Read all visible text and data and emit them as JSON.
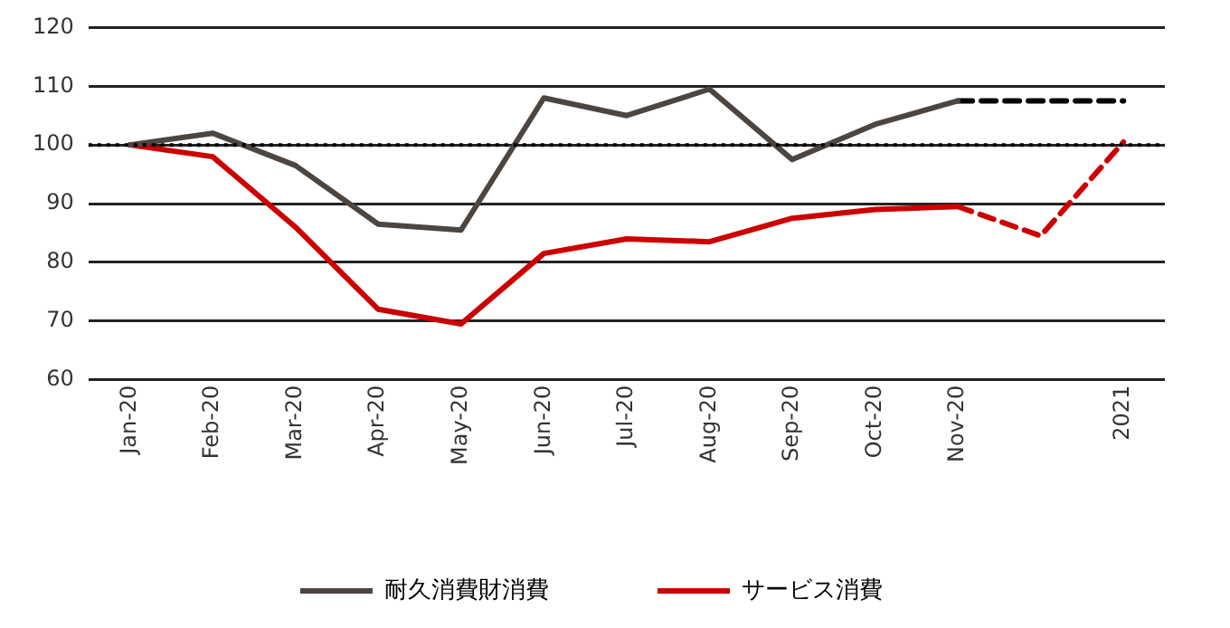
{
  "chart_data": {
    "type": "line",
    "categories": [
      "Jan-20",
      "Feb-20",
      "Mar-20",
      "Apr-20",
      "May-20",
      "Jun-20",
      "Jul-20",
      "Aug-20",
      "Sep-20",
      "Oct-20",
      "Nov-20",
      null,
      "2021"
    ],
    "series": [
      {
        "name": "耐久消費財消費",
        "color": "#4d4540",
        "values": [
          100,
          102,
          96.5,
          86.5,
          85.5,
          108,
          105,
          109.5,
          97.5,
          103.5,
          107.5,
          null,
          null
        ]
      },
      {
        "name": "サービス消費",
        "color": "#cc0000",
        "values": [
          100,
          98,
          86,
          72,
          69.5,
          81.5,
          84,
          83.5,
          87.5,
          89,
          89.5,
          null,
          null
        ]
      },
      {
        "color": "#000000",
        "line_style": "dashed",
        "values": [
          null,
          null,
          null,
          null,
          null,
          null,
          null,
          null,
          null,
          null,
          107.5,
          107.5,
          107.5
        ]
      },
      {
        "color": "#cc0000",
        "line_style": "dashed",
        "values": [
          null,
          null,
          null,
          null,
          null,
          null,
          null,
          null,
          null,
          null,
          89.5,
          84.5,
          100.5
        ]
      }
    ],
    "ylim": [
      60,
      120
    ],
    "yticks": [
      60,
      70,
      80,
      90,
      100,
      110,
      120
    ],
    "ref_lines": [
      {
        "axis": "y",
        "value": 100,
        "color": "#000000",
        "line_style": "dotted"
      }
    ],
    "grid": "y",
    "legend": "bottom",
    "line_style": "solid",
    "marker": "none"
  }
}
